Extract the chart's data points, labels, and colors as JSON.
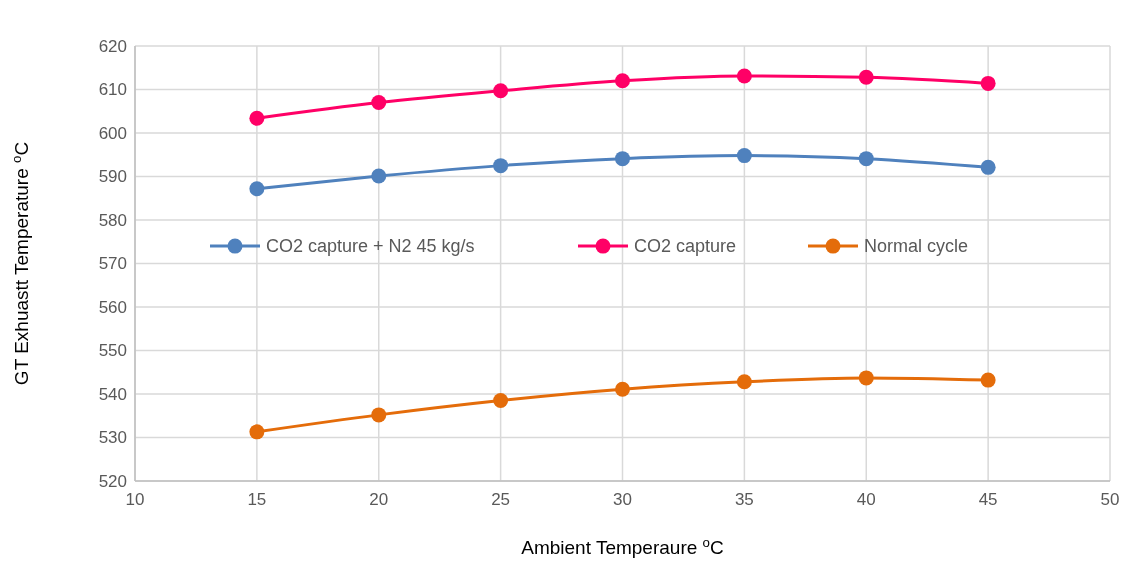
{
  "chart_data": {
    "type": "line",
    "xlabel": "Ambient Temperaure $^{o}$C",
    "ylabel": "GT Exhuastt Temperature $^{o}$C",
    "x": [
      15,
      20,
      25,
      30,
      35,
      40,
      45
    ],
    "series": [
      {
        "name": "CO2 capture + N2 45 kg/s",
        "color": "#4f81bd",
        "values": [
          587.2,
          590.1,
          592.5,
          594.1,
          594.8,
          594.1,
          592.1
        ]
      },
      {
        "name": "CO2 capture",
        "color": "#ff0066",
        "values": [
          603.4,
          607.0,
          609.7,
          612.0,
          613.1,
          612.8,
          611.4
        ]
      },
      {
        "name": "Normal cycle",
        "color": "#e46c0a",
        "values": [
          531.3,
          535.2,
          538.5,
          541.1,
          542.8,
          543.7,
          543.2
        ]
      }
    ],
    "xlim": [
      10,
      50
    ],
    "xticks": [
      10,
      15,
      20,
      25,
      30,
      35,
      40,
      45,
      50
    ],
    "ylim": [
      520,
      620
    ],
    "yticks": [
      520,
      530,
      540,
      550,
      560,
      570,
      580,
      590,
      600,
      610,
      620
    ],
    "grid": true,
    "legend": "top",
    "marker": "circle",
    "line_style": "solid"
  }
}
